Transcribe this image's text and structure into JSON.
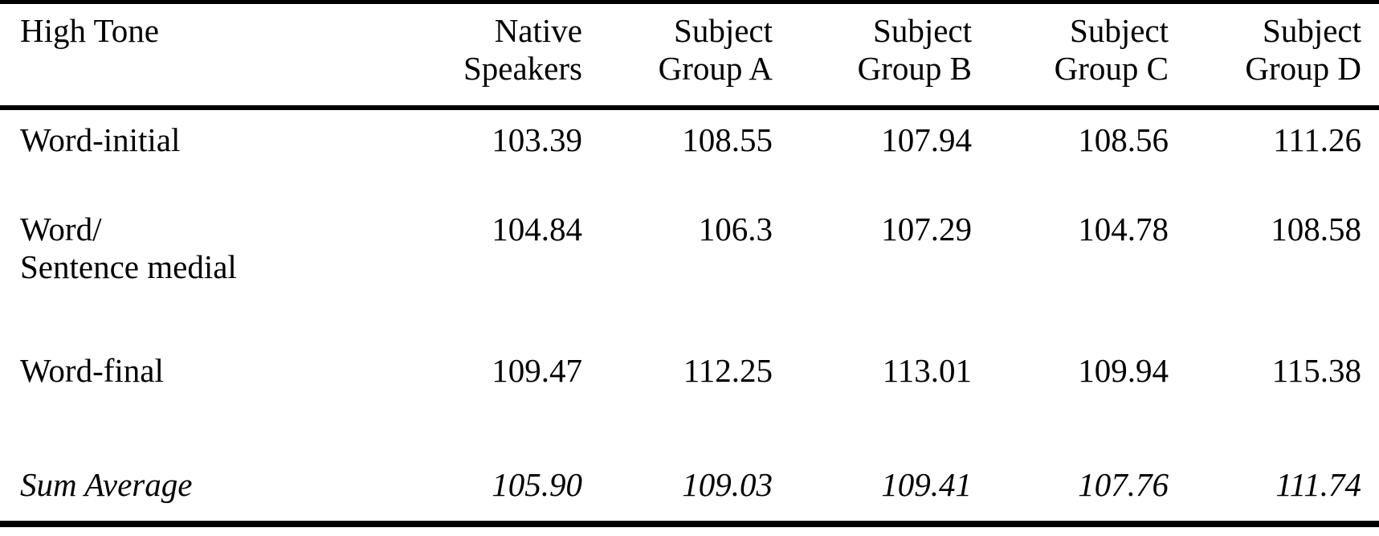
{
  "table": {
    "header": {
      "col0": "High Tone",
      "cols": [
        {
          "line1": "Native",
          "line2": "Speakers"
        },
        {
          "line1": "Subject",
          "line2": "Group A"
        },
        {
          "line1": "Subject",
          "line2": "Group B"
        },
        {
          "line1": "Subject",
          "line2": "Group C"
        },
        {
          "line1": "Subject",
          "line2": "Group D"
        }
      ]
    },
    "rows": [
      {
        "label": "Word-initial",
        "values": [
          "103.39",
          "108.55",
          "107.94",
          "108.56",
          "111.26"
        ]
      },
      {
        "label_line1": "Word/",
        "label_line2": "Sentence medial",
        "values": [
          "104.84",
          "106.3",
          "107.29",
          "104.78",
          "108.58"
        ]
      },
      {
        "label": "Word-final",
        "values": [
          "109.47",
          "112.25",
          "113.01",
          "109.94",
          "115.38"
        ]
      },
      {
        "label": "Sum Average",
        "values": [
          "105.90",
          "109.03",
          "109.41",
          "107.76",
          "111.74"
        ],
        "style": "italic"
      }
    ]
  },
  "chart_data": {
    "type": "table",
    "title": "High Tone",
    "columns": [
      "Native Speakers",
      "Subject Group A",
      "Subject Group B",
      "Subject Group C",
      "Subject Group D"
    ],
    "row_labels": [
      "Word-initial",
      "Word/ Sentence medial",
      "Word-final",
      "Sum Average"
    ],
    "series": [
      {
        "name": "Word-initial",
        "values": [
          103.39,
          108.55,
          107.94,
          108.56,
          111.26
        ]
      },
      {
        "name": "Word/ Sentence medial",
        "values": [
          104.84,
          106.3,
          107.29,
          104.78,
          108.58
        ]
      },
      {
        "name": "Word-final",
        "values": [
          109.47,
          112.25,
          113.01,
          109.94,
          115.38
        ]
      },
      {
        "name": "Sum Average",
        "values": [
          105.9,
          109.03,
          109.41,
          107.76,
          111.74
        ]
      }
    ]
  },
  "colors": {
    "text": "#000000",
    "background": "#ffffff",
    "rule": "#000000"
  }
}
